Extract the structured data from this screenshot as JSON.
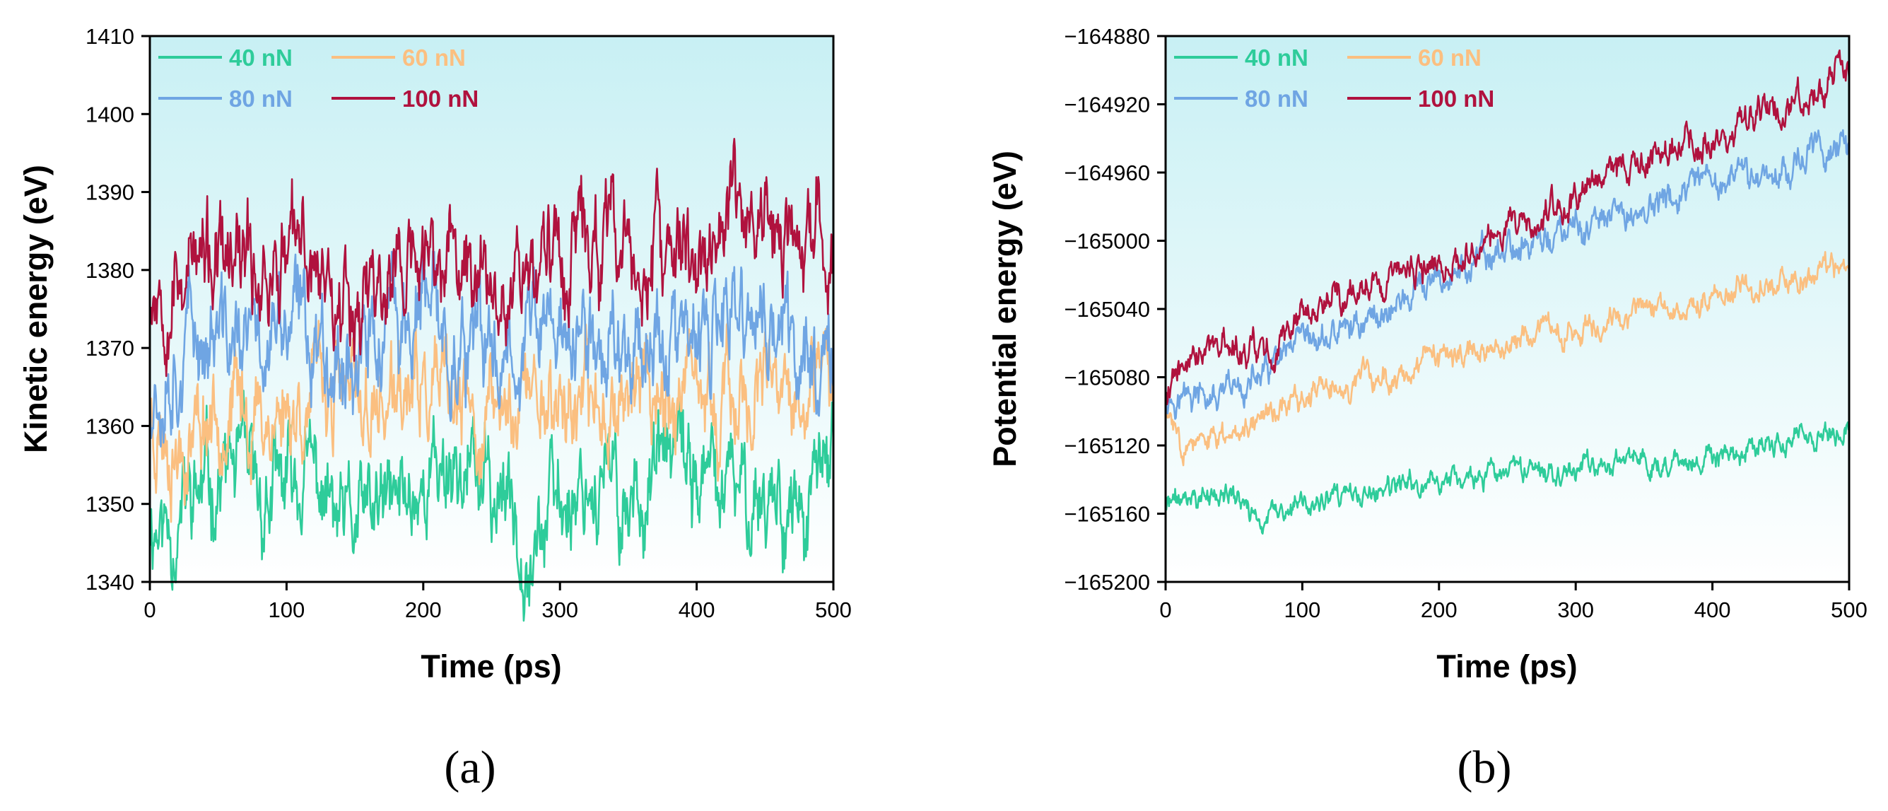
{
  "chart_data": [
    {
      "type": "line",
      "panel_label": "(a)",
      "xlabel": "Time (ps)",
      "ylabel": "Kinetic energy (eV)",
      "xlim": [
        0,
        500
      ],
      "ylim": [
        1340,
        1410
      ],
      "xticks": [
        0,
        100,
        200,
        300,
        400,
        500
      ],
      "yticks": [
        1340,
        1350,
        1360,
        1370,
        1380,
        1390,
        1400,
        1410
      ],
      "legend_position": "top-left",
      "series": [
        {
          "name": "40 nN",
          "color": "#2ecc9a",
          "mean": 1352,
          "trend": 0,
          "noise": 4.2,
          "seed": 11,
          "anchors": [
            [
              0,
              1349
            ],
            [
              10,
              1347
            ],
            [
              30,
              1350
            ],
            [
              60,
              1355
            ],
            [
              80,
              1350
            ],
            [
              120,
              1354
            ],
            [
              140,
              1346
            ],
            [
              180,
              1350
            ],
            [
              220,
              1356
            ],
            [
              260,
              1350
            ],
            [
              280,
              1346
            ],
            [
              320,
              1354
            ],
            [
              350,
              1350
            ],
            [
              380,
              1356
            ],
            [
              420,
              1351
            ],
            [
              460,
              1352
            ],
            [
              480,
              1347
            ],
            [
              500,
              1357
            ]
          ]
        },
        {
          "name": "60 nN",
          "color": "#fbbf80",
          "mean": 1363,
          "trend": 0,
          "noise": 4.0,
          "seed": 23,
          "anchors": [
            [
              0,
              1362
            ],
            [
              20,
              1358
            ],
            [
              50,
              1363
            ],
            [
              90,
              1361
            ],
            [
              130,
              1365
            ],
            [
              160,
              1362
            ],
            [
              200,
              1364
            ],
            [
              240,
              1360
            ],
            [
              280,
              1365
            ],
            [
              320,
              1362
            ],
            [
              360,
              1366
            ],
            [
              400,
              1362
            ],
            [
              440,
              1364
            ],
            [
              480,
              1361
            ],
            [
              500,
              1366
            ]
          ]
        },
        {
          "name": "80 nN",
          "color": "#6fa5e3",
          "mean": 1371,
          "trend": 0,
          "noise": 4.3,
          "seed": 37,
          "anchors": [
            [
              0,
              1366
            ],
            [
              30,
              1372
            ],
            [
              70,
              1370
            ],
            [
              110,
              1373
            ],
            [
              150,
              1369
            ],
            [
              200,
              1374
            ],
            [
              240,
              1368
            ],
            [
              280,
              1373
            ],
            [
              320,
              1370
            ],
            [
              360,
              1372
            ],
            [
              400,
              1369
            ],
            [
              440,
              1374
            ],
            [
              480,
              1369
            ],
            [
              500,
              1371
            ]
          ]
        },
        {
          "name": "100 nN",
          "color": "#b0123e",
          "mean": 1380,
          "trend": 0,
          "noise": 4.2,
          "seed": 53,
          "anchors": [
            [
              0,
              1378
            ],
            [
              30,
              1381
            ],
            [
              60,
              1379
            ],
            [
              110,
              1382
            ],
            [
              150,
              1377
            ],
            [
              200,
              1381
            ],
            [
              250,
              1380
            ],
            [
              290,
              1382
            ],
            [
              320,
              1384
            ],
            [
              360,
              1380
            ],
            [
              400,
              1382
            ],
            [
              440,
              1388
            ],
            [
              480,
              1380
            ],
            [
              500,
              1385
            ]
          ]
        }
      ]
    },
    {
      "type": "line",
      "panel_label": "(b)",
      "xlabel": "Time (ps)",
      "ylabel": "Potential energy (eV)",
      "xlim": [
        0,
        500
      ],
      "ylim": [
        -165200,
        -164880
      ],
      "xticks": [
        0,
        100,
        200,
        300,
        400,
        500
      ],
      "yticks": [
        -165200,
        -165160,
        -165120,
        -165080,
        -165040,
        -165000,
        -164960,
        -164920,
        -164880
      ],
      "ytick_labels": [
        "−165200",
        "−165160",
        "−165120",
        "−165080",
        "−165040",
        "−165000",
        "−164960",
        "−164920",
        "−164880"
      ],
      "legend_position": "top-left",
      "series": [
        {
          "name": "40 nN",
          "color": "#2ecc9a",
          "noise": 4.5,
          "seed": 71,
          "anchors": [
            [
              0,
              -165155
            ],
            [
              20,
              -165150
            ],
            [
              50,
              -165150
            ],
            [
              70,
              -165165
            ],
            [
              100,
              -165155
            ],
            [
              150,
              -165150
            ],
            [
              200,
              -165140
            ],
            [
              250,
              -165138
            ],
            [
              300,
              -165132
            ],
            [
              350,
              -165128
            ],
            [
              400,
              -165130
            ],
            [
              450,
              -165120
            ],
            [
              500,
              -165110
            ]
          ]
        },
        {
          "name": "60 nN",
          "color": "#fbbf80",
          "noise": 5.0,
          "seed": 83,
          "anchors": [
            [
              0,
              -165100
            ],
            [
              10,
              -165115
            ],
            [
              30,
              -165122
            ],
            [
              60,
              -165105
            ],
            [
              100,
              -165092
            ],
            [
              150,
              -165082
            ],
            [
              200,
              -165072
            ],
            [
              250,
              -165060
            ],
            [
              300,
              -165050
            ],
            [
              350,
              -165040
            ],
            [
              400,
              -165032
            ],
            [
              450,
              -165025
            ],
            [
              500,
              -165015
            ]
          ]
        },
        {
          "name": "80 nN",
          "color": "#6fa5e3",
          "noise": 6.0,
          "seed": 97,
          "anchors": [
            [
              0,
              -165090
            ],
            [
              20,
              -165092
            ],
            [
              40,
              -165095
            ],
            [
              60,
              -165085
            ],
            [
              100,
              -165065
            ],
            [
              150,
              -165045
            ],
            [
              200,
              -165025
            ],
            [
              250,
              -165005
            ],
            [
              300,
              -164995
            ],
            [
              350,
              -164982
            ],
            [
              400,
              -164968
            ],
            [
              450,
              -164958
            ],
            [
              490,
              -164942
            ],
            [
              500,
              -164952
            ]
          ]
        },
        {
          "name": "100 nN",
          "color": "#b0123e",
          "noise": 6.0,
          "seed": 109,
          "anchors": [
            [
              0,
              -165088
            ],
            [
              20,
              -165068
            ],
            [
              40,
              -165060
            ],
            [
              70,
              -165068
            ],
            [
              100,
              -165050
            ],
            [
              120,
              -165035
            ],
            [
              150,
              -165030
            ],
            [
              200,
              -165012
            ],
            [
              250,
              -164990
            ],
            [
              300,
              -164975
            ],
            [
              350,
              -164955
            ],
            [
              400,
              -164940
            ],
            [
              450,
              -164922
            ],
            [
              480,
              -164910
            ],
            [
              500,
              -164895
            ]
          ]
        }
      ]
    }
  ]
}
